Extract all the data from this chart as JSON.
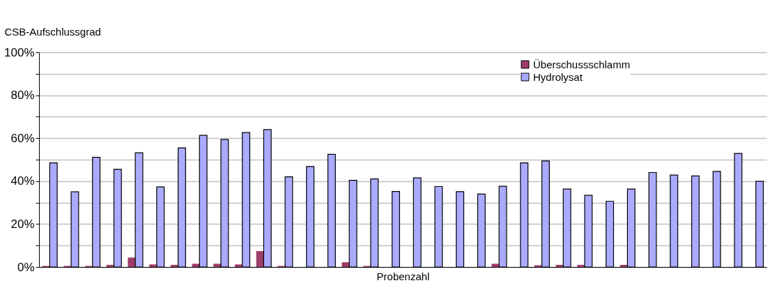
{
  "chart_data": {
    "type": "bar",
    "ylabel": "CSB-Aufschlussgrad",
    "xlabel": "Probenzahl",
    "categories": [
      null,
      null,
      null,
      null,
      null,
      null,
      null,
      null,
      null,
      null,
      null,
      null,
      null,
      null,
      null,
      null,
      null,
      null,
      null,
      null,
      null,
      null,
      null,
      null,
      null,
      null,
      null,
      null,
      null,
      null,
      null,
      null,
      null,
      null
    ],
    "series": [
      {
        "name": "Überschussschlamm",
        "color": "#9c3d6a",
        "values": [
          0.5,
          0.5,
          0.5,
          1.0,
          4.4,
          1.2,
          1.0,
          1.5,
          1.5,
          1.2,
          7.4,
          0.5,
          0,
          0,
          2.2,
          0.5,
          0,
          0,
          0,
          0,
          0,
          1.5,
          0,
          0.8,
          1.0,
          1.0,
          0,
          1.0,
          0,
          0,
          0,
          0,
          0,
          0
        ]
      },
      {
        "name": "Hydrolysat",
        "color": "#aaaaff",
        "values": [
          48.5,
          35.0,
          51.1,
          45.5,
          53.2,
          37.3,
          55.5,
          61.3,
          59.4,
          62.6,
          64.0,
          42.0,
          46.8,
          52.5,
          40.4,
          41.0,
          35.2,
          41.5,
          37.5,
          35.1,
          34.0,
          37.6,
          48.5,
          49.4,
          36.3,
          33.4,
          30.6,
          36.3,
          44.0,
          42.8,
          42.4,
          44.5,
          52.9,
          39.9
        ]
      }
    ],
    "ylim": [
      0,
      100
    ],
    "yticks": [
      {
        "value": 0,
        "label": "0%"
      },
      {
        "value": 10,
        "label": null
      },
      {
        "value": 20,
        "label": "20%"
      },
      {
        "value": 30,
        "label": null
      },
      {
        "value": 40,
        "label": "40%"
      },
      {
        "value": 50,
        "label": null
      },
      {
        "value": 60,
        "label": "60%"
      },
      {
        "value": 70,
        "label": null
      },
      {
        "value": 80,
        "label": "80%"
      },
      {
        "value": 90,
        "label": null
      },
      {
        "value": 100,
        "label": "100%"
      }
    ],
    "grid": "y",
    "legend": "top right"
  }
}
